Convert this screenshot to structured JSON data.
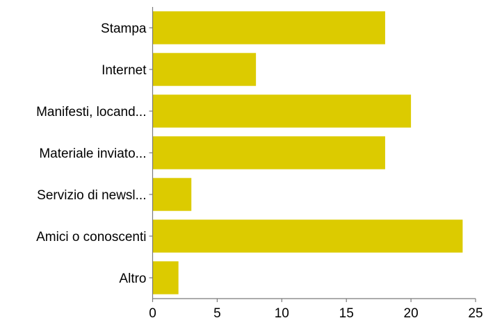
{
  "chart_data": {
    "type": "bar",
    "orientation": "horizontal",
    "categories": [
      "Stampa",
      "Internet",
      "Manifesti, locand...",
      "Materiale inviato...",
      "Servizio di newsl...",
      "Amici o conoscenti",
      "Altro"
    ],
    "values": [
      18,
      8,
      20,
      18,
      3,
      24,
      2
    ],
    "xlim": [
      0,
      25
    ],
    "xticks": [
      0,
      5,
      10,
      15,
      20,
      25
    ],
    "grid": false,
    "legend": "none",
    "bar_color": "#dccb00",
    "title": "",
    "xlabel": "",
    "ylabel": ""
  }
}
